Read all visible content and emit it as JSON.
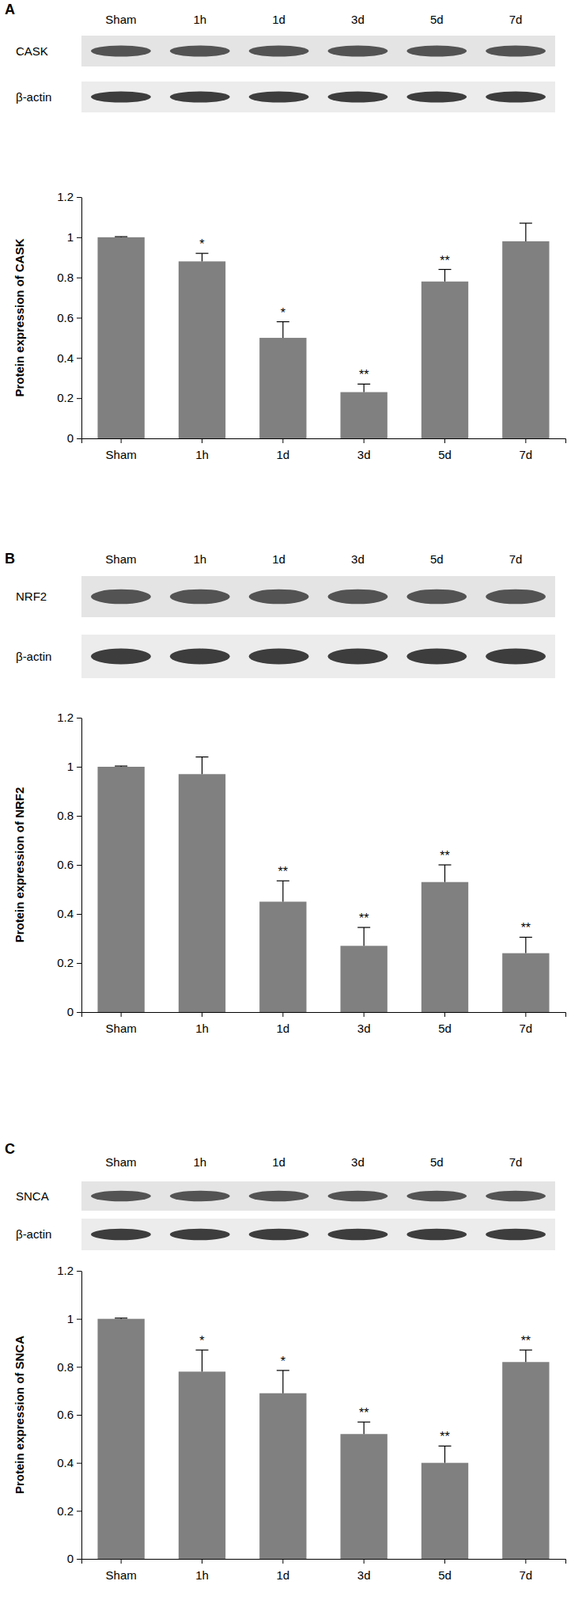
{
  "chart_data": [
    {
      "type": "bar",
      "panel": "A",
      "blot_rows": [
        "CASK",
        "β-actin"
      ],
      "blot_lanes": [
        "Sham",
        "1h",
        "1d",
        "3d",
        "5d",
        "7d"
      ],
      "categories": [
        "Sham",
        "1h",
        "1d",
        "3d",
        "5d",
        "7d"
      ],
      "values": [
        1.0,
        0.88,
        0.5,
        0.23,
        0.78,
        0.98
      ],
      "errors": [
        0.003,
        0.04,
        0.08,
        0.04,
        0.06,
        0.09
      ],
      "significance": [
        null,
        "*",
        "*",
        "**",
        "**",
        null
      ],
      "y_label": "Protein expression of CASK",
      "ylim": [
        0,
        1.2
      ],
      "yticks": [
        0,
        0.2,
        0.4,
        0.6,
        0.8,
        1,
        1.2
      ],
      "color": "#808080"
    },
    {
      "type": "bar",
      "panel": "B",
      "blot_rows": [
        "NRF2",
        "β-actin"
      ],
      "blot_lanes": [
        "Sham",
        "1h",
        "1d",
        "3d",
        "5d",
        "7d"
      ],
      "categories": [
        "Sham",
        "1h",
        "1d",
        "3d",
        "5d",
        "7d"
      ],
      "values": [
        1.0,
        0.97,
        0.45,
        0.27,
        0.53,
        0.24
      ],
      "errors": [
        0.003,
        0.07,
        0.085,
        0.075,
        0.07,
        0.065
      ],
      "significance": [
        null,
        null,
        "**",
        "**",
        "**",
        "**"
      ],
      "y_label": "Protein expression of NRF2",
      "ylim": [
        0,
        1.2
      ],
      "yticks": [
        0,
        0.2,
        0.4,
        0.6,
        0.8,
        1,
        1.2
      ],
      "color": "#808080"
    },
    {
      "type": "bar",
      "panel": "C",
      "blot_rows": [
        "SNCA",
        "β-actin"
      ],
      "blot_lanes": [
        "Sham",
        "1h",
        "1d",
        "3d",
        "5d",
        "7d"
      ],
      "categories": [
        "Sham",
        "1h",
        "1d",
        "3d",
        "5d",
        "7d"
      ],
      "values": [
        1.0,
        0.78,
        0.69,
        0.52,
        0.4,
        0.82
      ],
      "errors": [
        0.003,
        0.09,
        0.095,
        0.05,
        0.07,
        0.05
      ],
      "significance": [
        null,
        "*",
        "*",
        "**",
        "**",
        "**"
      ],
      "y_label": "Protein expression of SNCA",
      "ylim": [
        0,
        1.2
      ],
      "yticks": [
        0,
        0.2,
        0.4,
        0.6,
        0.8,
        1,
        1.2
      ],
      "color": "#808080"
    }
  ]
}
